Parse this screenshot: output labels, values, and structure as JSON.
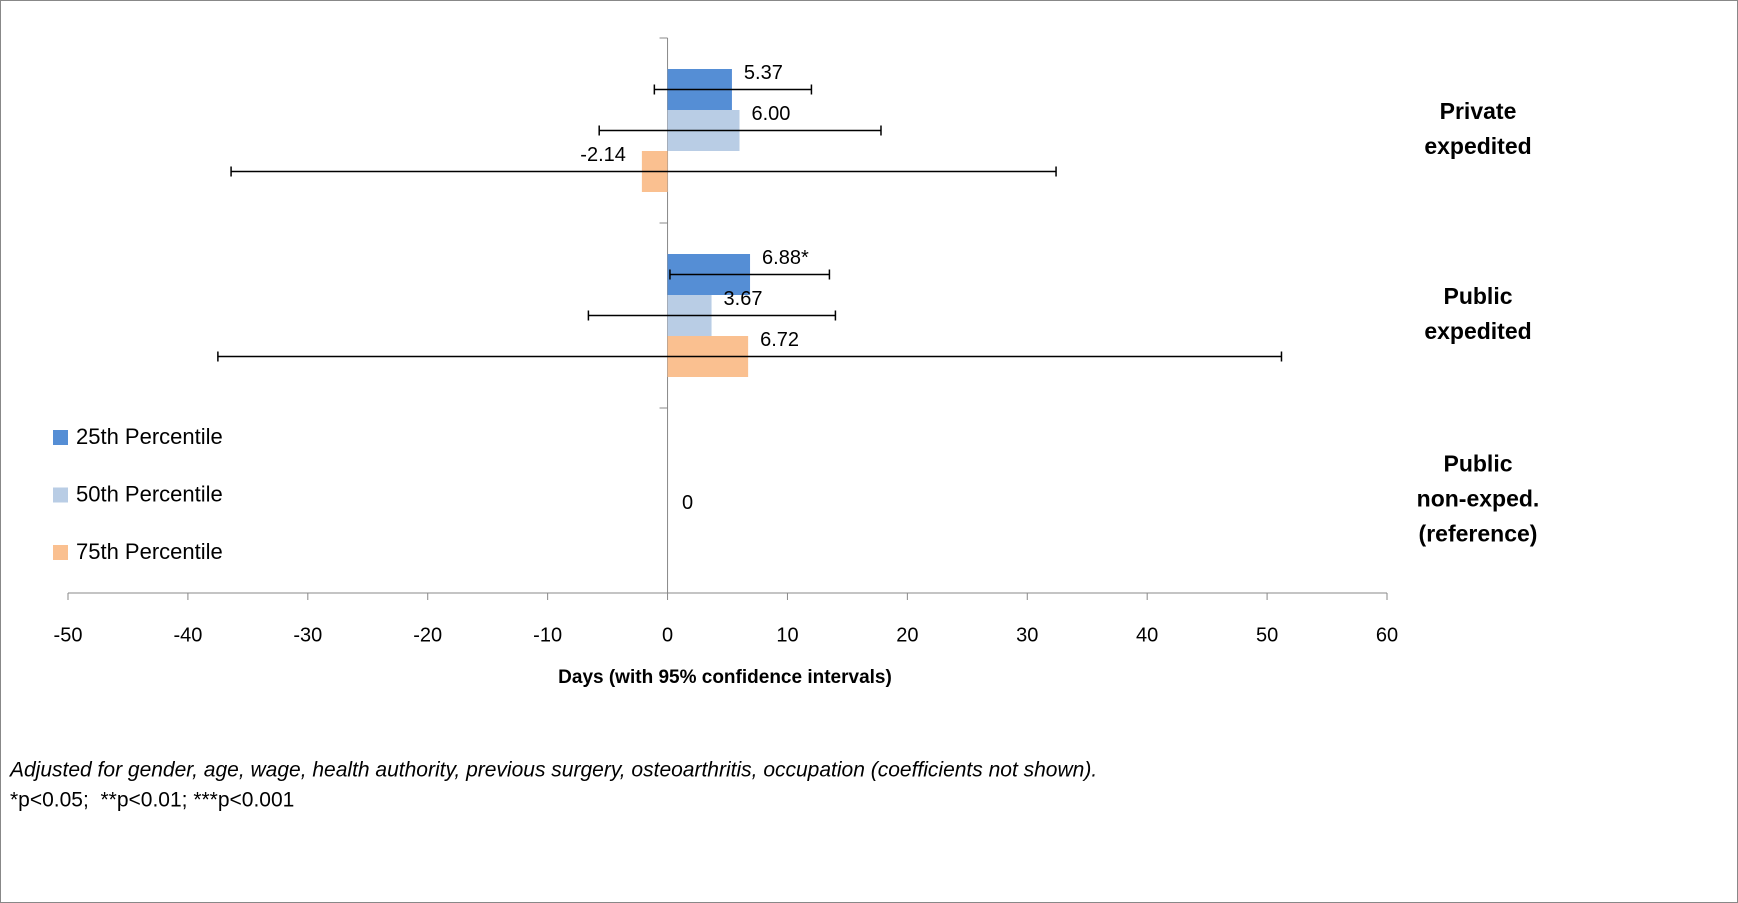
{
  "chart_data": {
    "type": "bar",
    "orientation": "horizontal",
    "categories": [
      "Private expedited",
      "Public expedited",
      "Public non-exped. (reference)"
    ],
    "series": [
      {
        "name": "25th Percentile",
        "color": "#558ed5",
        "values": [
          5.37,
          6.88,
          null
        ],
        "value_labels": [
          "5.37",
          "6.88*",
          null
        ],
        "ci_low": [
          -1.1,
          0.2,
          null
        ],
        "ci_high": [
          12.0,
          13.5,
          null
        ]
      },
      {
        "name": "50th Percentile",
        "color": "#b9cde5",
        "values": [
          6.0,
          3.67,
          null
        ],
        "value_labels": [
          "6.00",
          "3.67",
          null
        ],
        "ci_low": [
          -5.7,
          -6.6,
          null
        ],
        "ci_high": [
          17.8,
          14.0,
          null
        ]
      },
      {
        "name": "75th Percentile",
        "color": "#fac090",
        "values": [
          -2.14,
          6.72,
          null
        ],
        "value_labels": [
          "-2.14",
          "6.72",
          null
        ],
        "ci_low": [
          -36.4,
          -37.5,
          null
        ],
        "ci_high": [
          32.4,
          51.2,
          null
        ]
      }
    ],
    "reference_value": 0,
    "xlim": [
      -50,
      60
    ],
    "xticks": [
      -50,
      -40,
      -30,
      -20,
      -10,
      0,
      10,
      20,
      30,
      40,
      50,
      60
    ],
    "xlabel": "Days (with 95% confidence intervals)",
    "footnotes": [
      "Adjusted for gender, age, wage, health authority, previous surgery, osteoarthritis, occupation (coefficients not shown).",
      "*p<0.05;  **p<0.01; ***p<0.001"
    ]
  }
}
